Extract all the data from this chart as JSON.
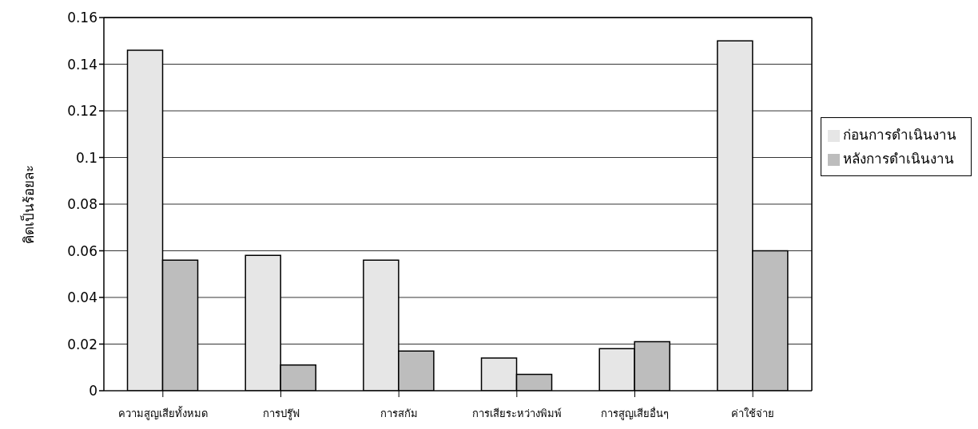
{
  "chart_data": {
    "type": "bar",
    "ylabel": "คิดเป็นร้อยละ",
    "categories": [
      "ความสูญเสียทั้งหมด",
      "การปรู๊ฟ",
      "การสกัม",
      "การเสียระหว่างพิมพ์",
      "การสูญเสียอื่นๆ",
      "ค่าใช้จ่าย"
    ],
    "series": [
      {
        "name": "ก่อนการดำเนินงาน",
        "color": "#e6e6e6",
        "values": [
          0.146,
          0.058,
          0.056,
          0.014,
          0.018,
          0.15
        ]
      },
      {
        "name": "หลังการดำเนินงาน",
        "color": "#bdbdbd",
        "values": [
          0.056,
          0.011,
          0.017,
          0.007,
          0.021,
          0.06
        ]
      }
    ],
    "ylim": [
      0,
      0.16
    ],
    "yticks": [
      0,
      0.02,
      0.04,
      0.06,
      0.08,
      0.1,
      0.12,
      0.14,
      0.16
    ],
    "grid": "y",
    "legend": "right"
  }
}
